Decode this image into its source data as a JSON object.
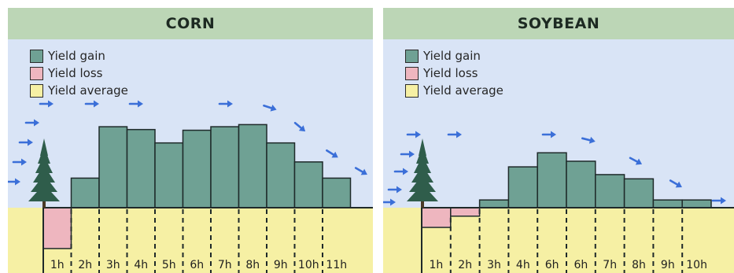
{
  "colors": {
    "gain": "#6fa194",
    "loss": "#eeb6bf",
    "average": "#f6f0a4",
    "sky": "#d9e4f6",
    "header": "#bcd6b6",
    "outline": "#1f2a2a",
    "arrow": "#3b6fd8",
    "tree": "#2f5d4b"
  },
  "legend": {
    "gain": "Yield gain",
    "loss": "Yield loss",
    "average": "Yield average"
  },
  "icons": [
    "tree-icon",
    "wind-arrow-icon"
  ],
  "chart_data": [
    {
      "type": "bar",
      "title": "CORN",
      "baseline": "Yield average",
      "categories": [
        "1h",
        "2h",
        "3h",
        "4h",
        "5h",
        "6h",
        "7h",
        "8h",
        "9h",
        "10h",
        "11h"
      ],
      "series": [
        {
          "name": "Yield gain / Yield loss",
          "values": [
            -5.8,
            4.2,
            11.5,
            11.1,
            9.2,
            11.0,
            11.5,
            11.8,
            9.2,
            6.5,
            4.2
          ]
        }
      ],
      "ylim": [
        -7.5,
        14
      ]
    },
    {
      "type": "bar",
      "title": "SOYBEAN",
      "baseline": "Yield average",
      "categories": [
        "1h",
        "2h",
        "3h",
        "4h",
        "6h",
        "6h",
        "7h",
        "8h",
        "9h",
        "10h"
      ],
      "series": [
        {
          "name": "Yield gain / Yield loss",
          "values": [
            -2.8,
            -1.2,
            1.1,
            5.8,
            7.8,
            6.6,
            4.7,
            4.1,
            1.1,
            1.1
          ]
        }
      ],
      "ylim": [
        -7.5,
        14
      ]
    }
  ]
}
